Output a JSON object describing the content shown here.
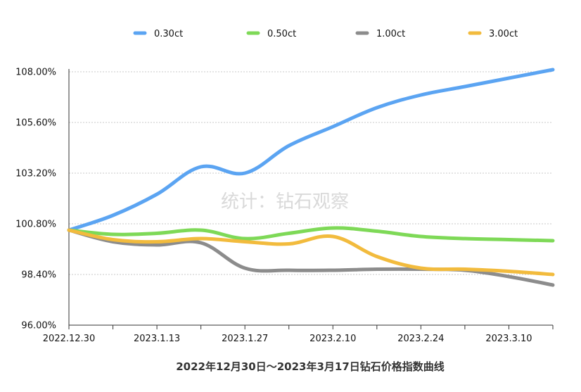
{
  "chart_data": {
    "type": "line",
    "title": "2022年12月30日～2023年3月17日钻石价格指数曲线",
    "watermark": "统计：钻石观察",
    "categories": [
      "2022.12.30",
      "2023.1.13",
      "2023.1.27",
      "2023.2.10",
      "2023.2.24",
      "2023.3.10"
    ],
    "y_ticks": [
      "96.00%",
      "98.40%",
      "100.80%",
      "103.20%",
      "105.60%",
      "108.00%"
    ],
    "ylim": [
      96.0,
      108.0
    ],
    "grid": true,
    "legend_position": "top",
    "x": [
      0,
      7,
      14,
      21,
      28,
      35,
      42,
      49,
      56,
      63,
      70,
      77
    ],
    "series": [
      {
        "name": "0.30ct",
        "color": "#5ba4f2",
        "values": [
          100.5,
          101.2,
          102.2,
          103.5,
          103.2,
          104.5,
          105.4,
          106.3,
          106.9,
          107.3,
          107.7,
          108.1
        ]
      },
      {
        "name": "0.50ct",
        "color": "#7ed957",
        "values": [
          100.5,
          100.3,
          100.35,
          100.5,
          100.1,
          100.35,
          100.6,
          100.45,
          100.2,
          100.1,
          100.05,
          100.0
        ]
      },
      {
        "name": "1.00ct",
        "color": "#8c8c8c",
        "values": [
          100.5,
          99.95,
          99.8,
          99.9,
          98.7,
          98.6,
          98.6,
          98.65,
          98.65,
          98.6,
          98.3,
          97.9
        ]
      },
      {
        "name": "3.00ct",
        "color": "#f2bb3d",
        "values": [
          100.5,
          100.05,
          99.95,
          100.1,
          99.95,
          99.85,
          100.2,
          99.25,
          98.7,
          98.65,
          98.55,
          98.4
        ]
      }
    ]
  }
}
